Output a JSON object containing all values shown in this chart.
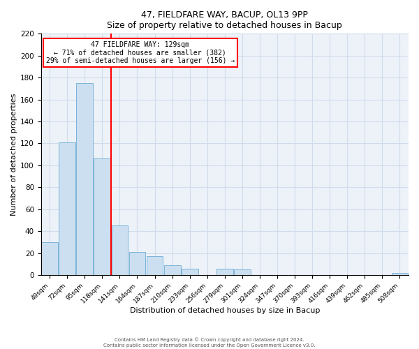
{
  "title": "47, FIELDFARE WAY, BACUP, OL13 9PP",
  "subtitle": "Size of property relative to detached houses in Bacup",
  "xlabel": "Distribution of detached houses by size in Bacup",
  "ylabel": "Number of detached properties",
  "bar_labels": [
    "49sqm",
    "72sqm",
    "95sqm",
    "118sqm",
    "141sqm",
    "164sqm",
    "187sqm",
    "210sqm",
    "233sqm",
    "256sqm",
    "279sqm",
    "301sqm",
    "324sqm",
    "347sqm",
    "370sqm",
    "393sqm",
    "416sqm",
    "439sqm",
    "462sqm",
    "485sqm",
    "508sqm"
  ],
  "bar_values": [
    30,
    121,
    175,
    106,
    45,
    21,
    17,
    9,
    6,
    0,
    6,
    5,
    0,
    0,
    0,
    0,
    0,
    0,
    0,
    0,
    2
  ],
  "bar_color": "#ccdff0",
  "bar_edgecolor": "#7ab4d8",
  "vline_x": 3.5,
  "vline_color": "red",
  "ylim": [
    0,
    220
  ],
  "yticks": [
    0,
    20,
    40,
    60,
    80,
    100,
    120,
    140,
    160,
    180,
    200,
    220
  ],
  "annotation_title": "47 FIELDFARE WAY: 129sqm",
  "annotation_line1": "← 71% of detached houses are smaller (382)",
  "annotation_line2": "29% of semi-detached houses are larger (156) →",
  "footer_line1": "Contains HM Land Registry data © Crown copyright and database right 2024.",
  "footer_line2": "Contains public sector information licensed under the Open Government Licence v3.0.",
  "background_color": "#edf2f9",
  "grid_color": "#d0dcea"
}
